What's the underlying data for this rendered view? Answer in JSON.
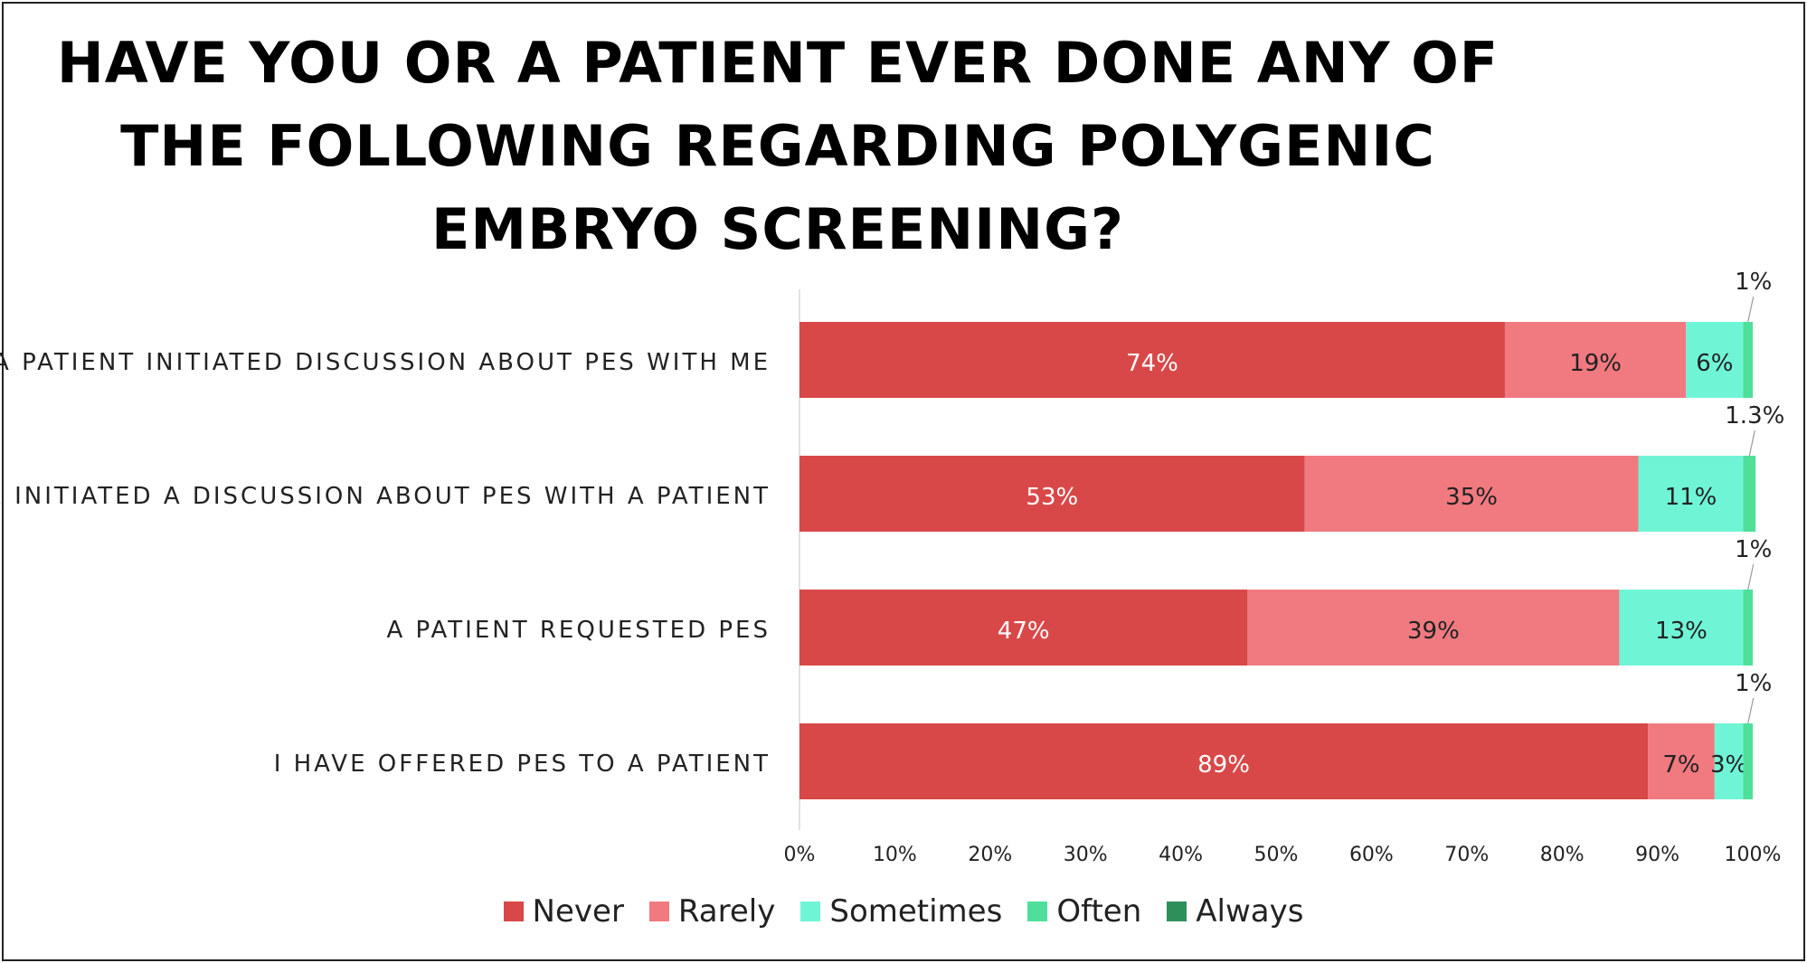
{
  "chart_data": {
    "type": "bar",
    "orientation": "horizontal",
    "stacked": true,
    "title_lines": [
      "HAVE YOU OR A PATIENT EVER DONE ANY OF",
      "THE FOLLOWING REGARDING POLYGENIC",
      "EMBRYO SCREENING?"
    ],
    "categories": [
      "A PATIENT INITIATED DISCUSSION ABOUT PES WITH ME",
      "I HAVE INITIATED A DISCUSSION ABOUT PES WITH A PATIENT",
      "A PATIENT REQUESTED PES",
      "I HAVE OFFERED PES TO A PATIENT"
    ],
    "series": [
      {
        "name": "Never",
        "color": "#d94848",
        "label_color": "#ffffff",
        "values": [
          74,
          53,
          47,
          89
        ],
        "labels": [
          "74%",
          "53%",
          "47%",
          "89%"
        ]
      },
      {
        "name": "Rarely",
        "color": "#f07a80",
        "label_color": "#222222",
        "values": [
          19,
          35,
          39,
          7
        ],
        "labels": [
          "19%",
          "35%",
          "39%",
          "7%"
        ]
      },
      {
        "name": "Sometimes",
        "color": "#6ff5d6",
        "label_color": "#222222",
        "values": [
          6,
          11,
          13,
          3
        ],
        "labels": [
          "6%",
          "11%",
          "13%",
          "3%"
        ]
      },
      {
        "name": "Often",
        "color": "#4ee09a",
        "label_color": "#222222",
        "values": [
          1,
          1.3,
          1,
          1
        ],
        "labels": [
          "1%",
          "1.3%",
          "1%",
          "1%"
        ]
      },
      {
        "name": "Always",
        "color": "#2f8f5b",
        "label_color": "#222222",
        "values": [
          0,
          0,
          0,
          0
        ],
        "labels": [
          "",
          "",
          "",
          ""
        ]
      }
    ],
    "xlim": [
      0,
      100
    ],
    "x_ticks": [
      "0%",
      "10%",
      "20%",
      "30%",
      "40%",
      "50%",
      "60%",
      "70%",
      "80%",
      "90%",
      "100%"
    ],
    "legend_position": "bottom",
    "grid": false
  }
}
